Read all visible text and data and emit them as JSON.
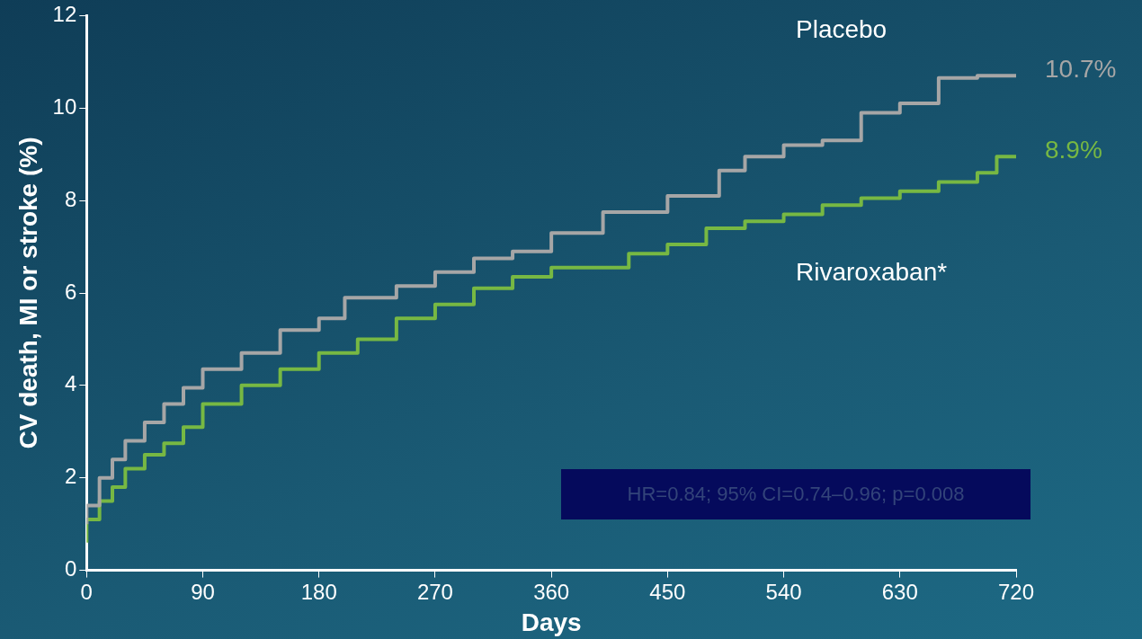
{
  "chart_data": {
    "type": "step",
    "xlabel": "Days",
    "ylabel": "CV death, MI or stroke (%)",
    "xlim": [
      0,
      720
    ],
    "xticks": [
      0,
      90,
      180,
      270,
      360,
      450,
      540,
      630,
      720
    ],
    "ylim": [
      0,
      12
    ],
    "yticks": [
      0,
      2,
      4,
      6,
      8,
      10,
      12
    ],
    "grid": false,
    "legend": false,
    "marker": "none",
    "line_style": "solid",
    "series": [
      {
        "name": "Placebo",
        "color": "#a6a6a6",
        "x": [
          0,
          10,
          20,
          30,
          45,
          60,
          75,
          90,
          120,
          150,
          180,
          200,
          240,
          270,
          300,
          330,
          360,
          400,
          450,
          490,
          510,
          540,
          570,
          600,
          630,
          660,
          690,
          720
        ],
        "values": [
          1.0,
          1.4,
          2.0,
          2.4,
          2.8,
          3.2,
          3.6,
          3.95,
          4.35,
          4.7,
          5.2,
          5.45,
          5.9,
          6.15,
          6.45,
          6.75,
          6.9,
          7.3,
          7.75,
          8.1,
          8.65,
          8.95,
          9.2,
          9.3,
          9.9,
          10.1,
          10.65,
          10.7
        ]
      },
      {
        "name": "Rivaroxaban*",
        "color": "#77b843",
        "x": [
          0,
          10,
          20,
          30,
          45,
          60,
          75,
          90,
          120,
          150,
          180,
          210,
          240,
          270,
          300,
          330,
          360,
          420,
          450,
          480,
          510,
          540,
          570,
          600,
          630,
          660,
          690,
          705,
          720
        ],
        "values": [
          0.6,
          1.1,
          1.5,
          1.8,
          2.2,
          2.5,
          2.75,
          3.1,
          3.6,
          4.0,
          4.35,
          4.7,
          5.0,
          5.45,
          5.75,
          6.1,
          6.35,
          6.55,
          6.85,
          7.05,
          7.4,
          7.55,
          7.7,
          7.9,
          8.05,
          8.2,
          8.4,
          8.6,
          8.95
        ]
      }
    ],
    "annotations": [
      {
        "text": "10.7%",
        "x": 720,
        "y": 10.7
      },
      {
        "text": "8.9%",
        "x": 720,
        "y": 8.95
      },
      "HR=0.84; 95% CI=0.74–0.96; p=0.008"
    ]
  }
}
